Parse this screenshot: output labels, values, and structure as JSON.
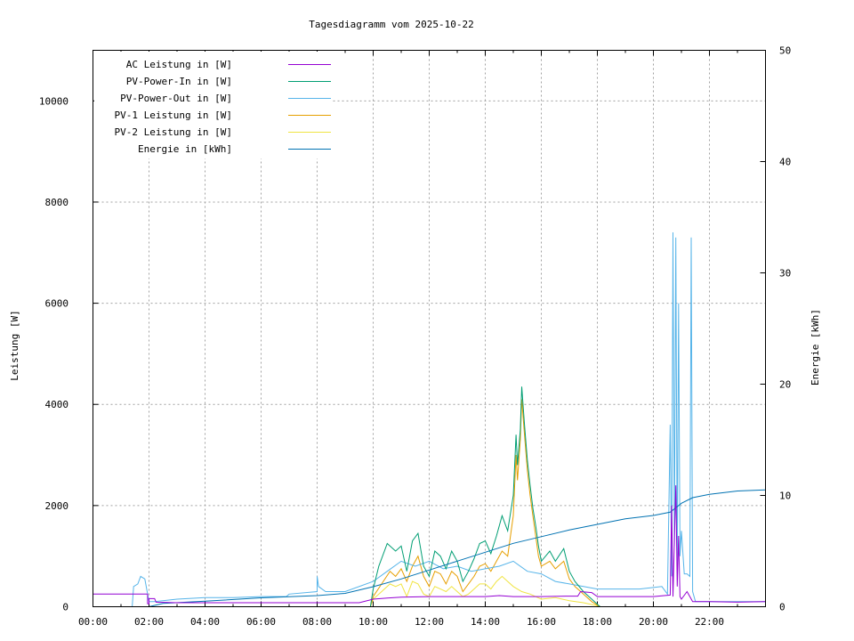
{
  "chart_data": {
    "type": "line",
    "title": "Tagesdiagramm vom 2025-10-22",
    "ylabel": "Leistung [W]",
    "y2label": "Energie [kWh]",
    "xlim": [
      0,
      24
    ],
    "ylim": [
      0,
      11000
    ],
    "y2lim": [
      0,
      50
    ],
    "grid": true,
    "legend_position": "top-left",
    "x_ticks": [
      {
        "v": 0,
        "label": "00:00"
      },
      {
        "v": 2,
        "label": "02:00"
      },
      {
        "v": 4,
        "label": "04:00"
      },
      {
        "v": 6,
        "label": "06:00"
      },
      {
        "v": 8,
        "label": "08:00"
      },
      {
        "v": 10,
        "label": "10:00"
      },
      {
        "v": 12,
        "label": "12:00"
      },
      {
        "v": 14,
        "label": "14:00"
      },
      {
        "v": 16,
        "label": "16:00"
      },
      {
        "v": 18,
        "label": "18:00"
      },
      {
        "v": 20,
        "label": "20:00"
      },
      {
        "v": 22,
        "label": "22:00"
      }
    ],
    "y_ticks": [
      {
        "v": 0,
        "label": "0"
      },
      {
        "v": 2000,
        "label": "2000"
      },
      {
        "v": 4000,
        "label": "4000"
      },
      {
        "v": 6000,
        "label": "6000"
      },
      {
        "v": 8000,
        "label": "8000"
      },
      {
        "v": 10000,
        "label": "10000"
      }
    ],
    "y2_ticks": [
      {
        "v": 0,
        "label": "0"
      },
      {
        "v": 10,
        "label": "10"
      },
      {
        "v": 20,
        "label": "20"
      },
      {
        "v": 30,
        "label": "30"
      },
      {
        "v": 40,
        "label": "40"
      },
      {
        "v": 50,
        "label": "50"
      }
    ],
    "series": [
      {
        "name": "AC Leistung in [W]",
        "color": "#9400d3",
        "axis": "y",
        "points": [
          [
            0,
            250
          ],
          [
            1.95,
            250
          ],
          [
            1.95,
            60
          ],
          [
            2,
            60
          ],
          [
            2,
            160
          ],
          [
            2.2,
            160
          ],
          [
            2.25,
            90
          ],
          [
            3,
            80
          ],
          [
            4,
            80
          ],
          [
            5,
            80
          ],
          [
            6,
            80
          ],
          [
            7,
            80
          ],
          [
            9.5,
            80
          ],
          [
            10,
            150
          ],
          [
            10.5,
            170
          ],
          [
            11,
            190
          ],
          [
            12,
            200
          ],
          [
            13,
            200
          ],
          [
            14,
            200
          ],
          [
            14.5,
            220
          ],
          [
            15,
            200
          ],
          [
            16,
            200
          ],
          [
            17,
            210
          ],
          [
            17.3,
            210
          ],
          [
            17.4,
            300
          ],
          [
            17.8,
            280
          ],
          [
            18,
            200
          ],
          [
            19,
            200
          ],
          [
            20,
            200
          ],
          [
            20.6,
            230
          ],
          [
            20.65,
            2000
          ],
          [
            20.7,
            200
          ],
          [
            20.8,
            2400
          ],
          [
            20.85,
            400
          ],
          [
            20.9,
            1400
          ],
          [
            20.95,
            200
          ],
          [
            21,
            150
          ],
          [
            21.2,
            300
          ],
          [
            21.3,
            200
          ],
          [
            21.4,
            100
          ],
          [
            22,
            100
          ],
          [
            23,
            90
          ],
          [
            24,
            100
          ]
        ]
      },
      {
        "name": "PV-Power-In in [W]",
        "color": "#009e73",
        "axis": "y",
        "points": [
          [
            0,
            0
          ],
          [
            9.9,
            0
          ],
          [
            10,
            350
          ],
          [
            10.2,
            800
          ],
          [
            10.5,
            1250
          ],
          [
            10.8,
            1100
          ],
          [
            11,
            1200
          ],
          [
            11.2,
            700
          ],
          [
            11.4,
            1300
          ],
          [
            11.6,
            1450
          ],
          [
            11.8,
            800
          ],
          [
            12,
            600
          ],
          [
            12.2,
            1100
          ],
          [
            12.4,
            1000
          ],
          [
            12.6,
            750
          ],
          [
            12.8,
            1100
          ],
          [
            13,
            900
          ],
          [
            13.2,
            500
          ],
          [
            13.4,
            700
          ],
          [
            13.6,
            950
          ],
          [
            13.8,
            1250
          ],
          [
            14,
            1300
          ],
          [
            14.2,
            1050
          ],
          [
            14.4,
            1400
          ],
          [
            14.6,
            1800
          ],
          [
            14.8,
            1500
          ],
          [
            15,
            2200
          ],
          [
            15.1,
            3400
          ],
          [
            15.15,
            2800
          ],
          [
            15.25,
            3500
          ],
          [
            15.3,
            4350
          ],
          [
            15.4,
            3600
          ],
          [
            15.5,
            2900
          ],
          [
            15.6,
            2400
          ],
          [
            15.7,
            1950
          ],
          [
            15.8,
            1600
          ],
          [
            15.9,
            1200
          ],
          [
            16,
            900
          ],
          [
            16.3,
            1100
          ],
          [
            16.5,
            900
          ],
          [
            16.8,
            1150
          ],
          [
            17,
            700
          ],
          [
            17.2,
            500
          ],
          [
            17.5,
            300
          ],
          [
            17.8,
            150
          ],
          [
            18,
            50
          ],
          [
            18.1,
            0
          ],
          [
            24,
            0
          ]
        ]
      },
      {
        "name": "PV-Power-Out in [W]",
        "color": "#56b4e9",
        "axis": "y",
        "points": [
          [
            0,
            0
          ],
          [
            1.4,
            0
          ],
          [
            1.45,
            400
          ],
          [
            1.6,
            450
          ],
          [
            1.7,
            600
          ],
          [
            1.85,
            550
          ],
          [
            2,
            100
          ],
          [
            2.2,
            100
          ],
          [
            3,
            150
          ],
          [
            4,
            180
          ],
          [
            5,
            180
          ],
          [
            6,
            200
          ],
          [
            6.9,
            200
          ],
          [
            7,
            250
          ],
          [
            8,
            300
          ],
          [
            8,
            600
          ],
          [
            8.05,
            400
          ],
          [
            8.3,
            300
          ],
          [
            9,
            300
          ],
          [
            10,
            500
          ],
          [
            10.5,
            700
          ],
          [
            11,
            900
          ],
          [
            11.5,
            800
          ],
          [
            12,
            900
          ],
          [
            12.5,
            750
          ],
          [
            13,
            800
          ],
          [
            13.5,
            700
          ],
          [
            14,
            750
          ],
          [
            14.5,
            800
          ],
          [
            15,
            900
          ],
          [
            15.5,
            700
          ],
          [
            16,
            650
          ],
          [
            16.5,
            500
          ],
          [
            17,
            450
          ],
          [
            17.5,
            400
          ],
          [
            18,
            350
          ],
          [
            18.5,
            350
          ],
          [
            19,
            350
          ],
          [
            19.5,
            350
          ],
          [
            20,
            380
          ],
          [
            20.3,
            400
          ],
          [
            20.5,
            250
          ],
          [
            20.6,
            3600
          ],
          [
            20.65,
            600
          ],
          [
            20.7,
            7400
          ],
          [
            20.75,
            1200
          ],
          [
            20.8,
            7300
          ],
          [
            20.85,
            800
          ],
          [
            20.9,
            6000
          ],
          [
            20.95,
            1000
          ],
          [
            21,
            1500
          ],
          [
            21.1,
            650
          ],
          [
            21.2,
            650
          ],
          [
            21.3,
            600
          ],
          [
            21.35,
            7300
          ],
          [
            21.4,
            300
          ],
          [
            21.5,
            100
          ],
          [
            22,
            100
          ],
          [
            23,
            100
          ],
          [
            24,
            100
          ]
        ]
      },
      {
        "name": "PV-1 Leistung in [W]",
        "color": "#e69f00",
        "axis": "y",
        "points": [
          [
            0,
            0
          ],
          [
            9.9,
            0
          ],
          [
            10,
            200
          ],
          [
            10.3,
            450
          ],
          [
            10.6,
            700
          ],
          [
            10.8,
            600
          ],
          [
            11,
            750
          ],
          [
            11.2,
            500
          ],
          [
            11.4,
            800
          ],
          [
            11.6,
            1000
          ],
          [
            11.8,
            600
          ],
          [
            12,
            400
          ],
          [
            12.2,
            700
          ],
          [
            12.4,
            650
          ],
          [
            12.6,
            450
          ],
          [
            12.8,
            700
          ],
          [
            13,
            600
          ],
          [
            13.2,
            300
          ],
          [
            13.4,
            450
          ],
          [
            13.6,
            600
          ],
          [
            13.8,
            800
          ],
          [
            14,
            850
          ],
          [
            14.2,
            700
          ],
          [
            14.4,
            900
          ],
          [
            14.6,
            1100
          ],
          [
            14.8,
            1000
          ],
          [
            15,
            1800
          ],
          [
            15.1,
            3000
          ],
          [
            15.15,
            2500
          ],
          [
            15.25,
            3300
          ],
          [
            15.3,
            4100
          ],
          [
            15.4,
            3400
          ],
          [
            15.5,
            2700
          ],
          [
            15.6,
            2200
          ],
          [
            15.7,
            1800
          ],
          [
            15.8,
            1400
          ],
          [
            15.9,
            1000
          ],
          [
            16,
            800
          ],
          [
            16.3,
            900
          ],
          [
            16.5,
            750
          ],
          [
            16.8,
            900
          ],
          [
            17,
            550
          ],
          [
            17.2,
            400
          ],
          [
            17.5,
            250
          ],
          [
            17.8,
            100
          ],
          [
            18,
            30
          ],
          [
            18.1,
            0
          ],
          [
            24,
            0
          ]
        ]
      },
      {
        "name": "PV-2 Leistung in [W]",
        "color": "#f0e442",
        "axis": "y",
        "points": [
          [
            0,
            0
          ],
          [
            9.9,
            0
          ],
          [
            10,
            150
          ],
          [
            10.3,
            300
          ],
          [
            10.6,
            450
          ],
          [
            10.8,
            400
          ],
          [
            11,
            450
          ],
          [
            11.2,
            200
          ],
          [
            11.4,
            500
          ],
          [
            11.6,
            450
          ],
          [
            11.8,
            250
          ],
          [
            12,
            200
          ],
          [
            12.2,
            400
          ],
          [
            12.4,
            350
          ],
          [
            12.6,
            300
          ],
          [
            12.8,
            400
          ],
          [
            13,
            300
          ],
          [
            13.2,
            200
          ],
          [
            13.4,
            250
          ],
          [
            13.6,
            350
          ],
          [
            13.8,
            450
          ],
          [
            14,
            450
          ],
          [
            14.2,
            350
          ],
          [
            14.4,
            500
          ],
          [
            14.6,
            600
          ],
          [
            14.8,
            500
          ],
          [
            15,
            400
          ],
          [
            15.3,
            300
          ],
          [
            15.6,
            250
          ],
          [
            16,
            150
          ],
          [
            16.5,
            180
          ],
          [
            17,
            120
          ],
          [
            17.5,
            80
          ],
          [
            18,
            20
          ],
          [
            18.1,
            0
          ],
          [
            24,
            0
          ]
        ]
      },
      {
        "name": "Energie in [kWh]",
        "color": "#0072b2",
        "axis": "y2",
        "points": [
          [
            0,
            0
          ],
          [
            2,
            0
          ],
          [
            2.5,
            0.3
          ],
          [
            4,
            0.5
          ],
          [
            6,
            0.8
          ],
          [
            8,
            1.0
          ],
          [
            9,
            1.2
          ],
          [
            10,
            1.8
          ],
          [
            11,
            2.5
          ],
          [
            12,
            3.3
          ],
          [
            13,
            4.1
          ],
          [
            14,
            4.9
          ],
          [
            15,
            5.7
          ],
          [
            16,
            6.3
          ],
          [
            17,
            6.9
          ],
          [
            18,
            7.4
          ],
          [
            19,
            7.9
          ],
          [
            20,
            8.2
          ],
          [
            20.6,
            8.5
          ],
          [
            21,
            9.3
          ],
          [
            21.4,
            9.8
          ],
          [
            22,
            10.1
          ],
          [
            23,
            10.4
          ],
          [
            24,
            10.5
          ]
        ]
      }
    ]
  }
}
